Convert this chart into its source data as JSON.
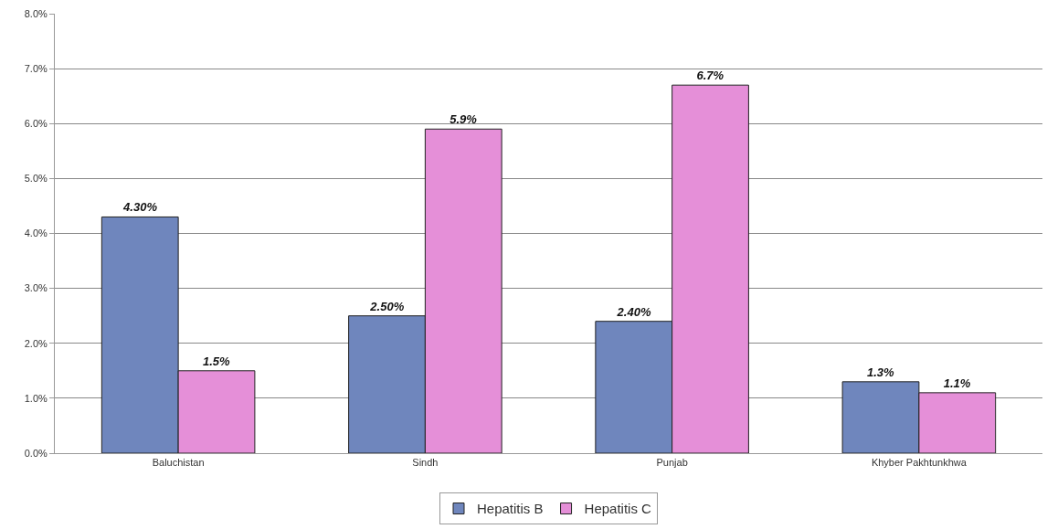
{
  "chart_data": {
    "type": "bar",
    "categories": [
      "Baluchistan",
      "Sindh",
      "Punjab",
      "Khyber Pakhtunkhwa"
    ],
    "series": [
      {
        "name": "Hepatitis B",
        "color": "#6f86bd",
        "values": [
          4.3,
          2.5,
          2.4,
          1.3
        ],
        "value_labels": [
          "4.30%",
          "2.50%",
          "2.40%",
          "1.3%"
        ]
      },
      {
        "name": "Hepatitis C",
        "color": "#e58fd8",
        "values": [
          1.5,
          5.9,
          6.7,
          1.1
        ],
        "value_labels": [
          "1.5%",
          "5.9%",
          "6.7%",
          "1.1%"
        ]
      }
    ],
    "ylim": [
      0,
      8
    ],
    "yticks": [
      {
        "value": 0,
        "label": "0.0%"
      },
      {
        "value": 1,
        "label": "1.0%"
      },
      {
        "value": 2,
        "label": "2.0%"
      },
      {
        "value": 3,
        "label": "3.0%"
      },
      {
        "value": 4,
        "label": "4.0%"
      },
      {
        "value": 5,
        "label": "5.0%"
      },
      {
        "value": 6,
        "label": "6.0%"
      },
      {
        "value": 7,
        "label": "7.0%"
      },
      {
        "value": 8,
        "label": "8.0%"
      }
    ],
    "grid": "y",
    "legend": "bottom"
  }
}
